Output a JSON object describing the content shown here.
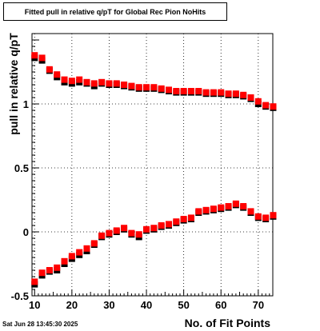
{
  "title": "Fitted pull in relative q/pT for Global Rec Pion NoHits",
  "footer_date": "Sat Jun 28 13:45:30 2025",
  "chart_data": {
    "type": "scatter",
    "title": "Fitted pull in relative q/pT for Global Rec Pion NoHits",
    "xlabel": "No. of Fit Points",
    "ylabel": "pull in relative q/pT",
    "xlim": [
      9.3,
      73.9
    ],
    "ylim": [
      -0.5,
      1.55
    ],
    "x_ticks": [
      10,
      20,
      30,
      40,
      50,
      60,
      70
    ],
    "y_ticks": [
      -0.5,
      0,
      0.5,
      1
    ],
    "grid": true,
    "series": [
      {
        "color": "#000000",
        "x": [
          10,
          12,
          14,
          16,
          18,
          20,
          22,
          24,
          26,
          28,
          30,
          32,
          34,
          36,
          38,
          40,
          42,
          44,
          46,
          48,
          50,
          52,
          54,
          56,
          58,
          60,
          62,
          64,
          66,
          68,
          70,
          72,
          74
        ],
        "y": [
          1.36,
          1.34,
          1.26,
          1.21,
          1.17,
          1.16,
          1.17,
          1.16,
          1.14,
          1.16,
          1.15,
          1.15,
          1.14,
          1.13,
          1.12,
          1.12,
          1.12,
          1.11,
          1.1,
          1.09,
          1.09,
          1.09,
          1.09,
          1.08,
          1.08,
          1.08,
          1.07,
          1.07,
          1.06,
          1.04,
          1.0,
          0.98,
          0.97
        ]
      },
      {
        "color": "#ff0000",
        "x": [
          10,
          12,
          14,
          16,
          18,
          20,
          22,
          24,
          26,
          28,
          30,
          32,
          34,
          36,
          38,
          40,
          42,
          44,
          46,
          48,
          50,
          52,
          54,
          56,
          58,
          60,
          62,
          64,
          66,
          68,
          70,
          72,
          74
        ],
        "y": [
          1.38,
          1.36,
          1.27,
          1.23,
          1.19,
          1.18,
          1.19,
          1.17,
          1.16,
          1.17,
          1.16,
          1.16,
          1.15,
          1.14,
          1.13,
          1.13,
          1.13,
          1.12,
          1.11,
          1.1,
          1.1,
          1.1,
          1.1,
          1.09,
          1.09,
          1.09,
          1.08,
          1.08,
          1.07,
          1.05,
          1.02,
          0.99,
          0.98
        ]
      },
      {
        "color": "#000000",
        "x": [
          10,
          12,
          14,
          16,
          18,
          20,
          22,
          24,
          26,
          28,
          30,
          32,
          34,
          36,
          38,
          40,
          42,
          44,
          46,
          48,
          50,
          52,
          54,
          56,
          58,
          60,
          62,
          64,
          66,
          68,
          70,
          72,
          74
        ],
        "y": [
          -0.41,
          -0.34,
          -0.31,
          -0.3,
          -0.25,
          -0.21,
          -0.18,
          -0.15,
          -0.1,
          -0.04,
          -0.02,
          0.0,
          0.02,
          -0.02,
          -0.04,
          0.01,
          0.02,
          0.04,
          0.05,
          0.07,
          0.09,
          0.1,
          0.15,
          0.16,
          0.17,
          0.18,
          0.19,
          0.21,
          0.19,
          0.15,
          0.11,
          0.1,
          0.12
        ]
      },
      {
        "color": "#ff0000",
        "x": [
          10,
          12,
          14,
          16,
          18,
          20,
          22,
          24,
          26,
          28,
          30,
          32,
          34,
          36,
          38,
          40,
          42,
          44,
          46,
          48,
          50,
          52,
          54,
          56,
          58,
          60,
          62,
          64,
          66,
          68,
          70,
          72,
          74
        ],
        "y": [
          -0.39,
          -0.32,
          -0.3,
          -0.28,
          -0.23,
          -0.19,
          -0.16,
          -0.13,
          -0.09,
          -0.03,
          -0.01,
          0.01,
          0.03,
          -0.01,
          -0.02,
          0.02,
          0.03,
          0.05,
          0.06,
          0.08,
          0.1,
          0.11,
          0.16,
          0.17,
          0.18,
          0.19,
          0.2,
          0.22,
          0.2,
          0.16,
          0.12,
          0.11,
          0.13
        ]
      }
    ]
  }
}
